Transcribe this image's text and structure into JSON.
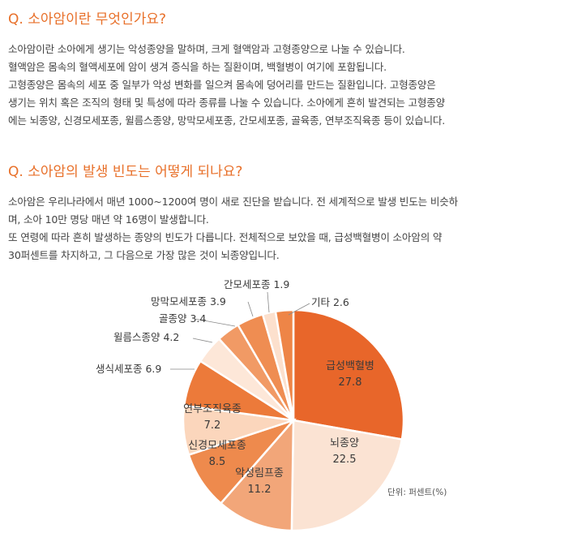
{
  "section1": {
    "title": "Q. 소아암이란 무엇인가요?",
    "lines": [
      "소아암이란 소아에게 생기는 악성종양을 말하며, 크게 혈액암과 고형종양으로 나눌 수 있습니다.",
      "혈액암은 몸속의 혈액세포에 암이 생겨 증식을 하는 질환이며, 백혈병이 여기에 포함됩니다.",
      "고형종양은 몸속의 세포 중 일부가 악성 변화를 일으켜 몸속에 덩어리를 만드는 질환입니다. 고형종양은",
      "생기는 위치 혹은 조직의 형태 및 특성에 따라 종류를 나눌 수 있습니다. 소아에게 흔히 발견되는 고형종양",
      "에는 뇌종양, 신경모세포종, 윌름스종양, 망막모세포종, 간모세포종, 골육종, 연부조직육종 등이 있습니다."
    ]
  },
  "section2": {
    "title": "Q. 소아암의 발생 빈도는 어떻게 되나요?",
    "lines": [
      "소아암은 우리나라에서 매년 1000~1200여 명이 새로 진단을 받습니다. 전 세계적으로 발생 빈도는 비슷하",
      "며, 소아 10만 명당 매년 약 16명이 발생합니다.",
      "또 연령에 따라 흔히 발생하는 종양의 빈도가 다릅니다. 전체적으로 보았을 때, 급성백혈병이 소아암의 약",
      "30퍼센트를 차지하고, 그 다음으로 가장 많은 것이 뇌종양입니다."
    ]
  },
  "chart_data": {
    "type": "pie",
    "unit_label": "단위: 퍼센트(%)",
    "slices": [
      {
        "name": "급성백혈병",
        "value": 27.8,
        "color": "#e8662a"
      },
      {
        "name": "뇌종양",
        "value": 22.5,
        "color": "#fbe3d3"
      },
      {
        "name": "악성림프종",
        "value": 11.2,
        "color": "#f2a679"
      },
      {
        "name": "신경모세포종",
        "value": 8.5,
        "color": "#ee8a4d"
      },
      {
        "name": "연부조직육종",
        "value": 7.2,
        "color": "#fbd6bc"
      },
      {
        "name": "생식세포종",
        "value": 6.9,
        "color": "#ec7a3a"
      },
      {
        "name": "윌름스종양",
        "value": 4.2,
        "color": "#fde7d8"
      },
      {
        "name": "골종양",
        "value": 3.4,
        "color": "#f19a65"
      },
      {
        "name": "망막모세포종",
        "value": 3.9,
        "color": "#ef8d52"
      },
      {
        "name": "간모세포종",
        "value": 1.9,
        "color": "#fce0cd"
      },
      {
        "name": "기타",
        "value": 2.6,
        "color": "#ee8547"
      }
    ]
  }
}
